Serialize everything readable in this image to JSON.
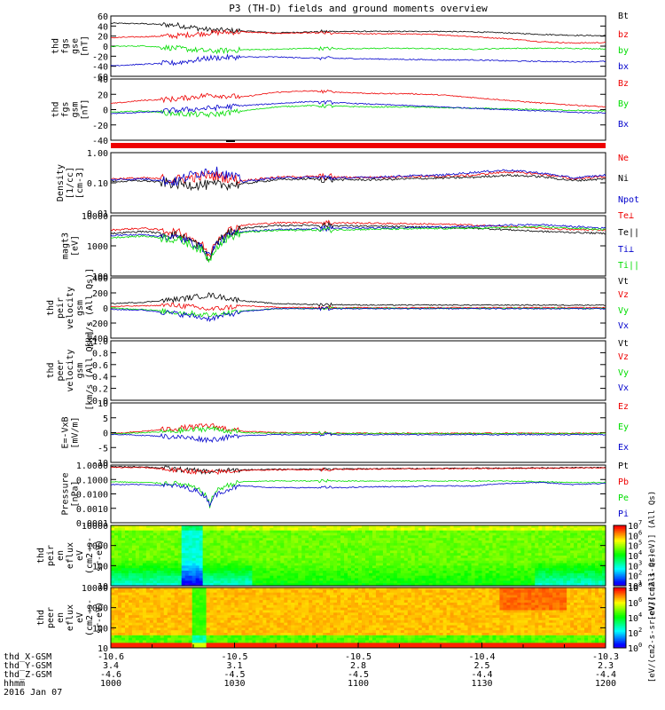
{
  "title": "P3 (TH-D) fields and ground moments overview",
  "colors": {
    "black": "#000000",
    "red": "#ee0000",
    "green": "#00dd00",
    "blue": "#0000cc"
  },
  "chart_data": [
    {
      "panel": "fgs-gse",
      "type": "line",
      "ylabel": [
        "thd",
        "fgs",
        "gse",
        "[nT]"
      ],
      "yticks": [
        "60",
        "40",
        "20",
        "0",
        "-20",
        "-40",
        "-60"
      ],
      "ylim": [
        -60,
        65
      ],
      "series": [
        {
          "name": "Bt",
          "color": "black",
          "values": [
            50,
            49,
            46,
            36,
            34,
            30,
            32,
            33,
            33,
            33,
            33,
            32,
            30,
            27,
            25,
            24
          ]
        },
        {
          "name": "bz",
          "color": "red",
          "values": [
            20,
            22,
            24,
            30,
            32,
            29,
            30,
            29,
            28,
            28,
            26,
            22,
            18,
            12,
            9,
            10
          ]
        },
        {
          "name": "by",
          "color": "green",
          "values": [
            2,
            3,
            -2,
            -8,
            -5,
            -4,
            -2,
            -3,
            -2,
            -2,
            -3,
            -4,
            -2,
            -2,
            -2,
            -3
          ]
        },
        {
          "name": "bx",
          "color": "blue",
          "values": [
            -38,
            -35,
            -32,
            -22,
            -20,
            -20,
            -22,
            -23,
            -24,
            -25,
            -26,
            -26,
            -28,
            -29,
            -30,
            -29
          ]
        }
      ]
    },
    {
      "panel": "fgs-gsm",
      "type": "line",
      "ylabel": [
        "thd",
        "fgs",
        "gsm",
        "[nT]"
      ],
      "yticks": [
        "40",
        "20",
        "0",
        "-20",
        "-40"
      ],
      "ylim": [
        -50,
        42
      ],
      "series": [
        {
          "name": "Bz",
          "color": "red",
          "values": [
            5,
            10,
            12,
            18,
            15,
            22,
            24,
            22,
            20,
            20,
            18,
            14,
            10,
            6,
            3,
            0
          ]
        },
        {
          "name": "By",
          "color": "green",
          "values": [
            -8,
            -6,
            -10,
            -12,
            -6,
            0,
            2,
            1,
            0,
            0,
            -1,
            -2,
            -3,
            -4,
            -5,
            -6
          ]
        },
        {
          "name": "Bx",
          "color": "blue",
          "values": [
            -10,
            -8,
            -5,
            -2,
            2,
            5,
            8,
            6,
            4,
            2,
            0,
            -2,
            -4,
            -6,
            -8,
            -9
          ]
        }
      ]
    },
    {
      "panel": "density",
      "type": "line",
      "ylog": true,
      "ylabel": [
        "Density",
        "[1/cc]",
        "[cm-3]"
      ],
      "yticks": [
        "1.00",
        "0.10",
        "0.01"
      ],
      "ylim": [
        0.01,
        1.2
      ],
      "series": [
        {
          "name": "Ne",
          "color": "red",
          "values": [
            0.15,
            0.16,
            0.14,
            0.2,
            0.13,
            0.17,
            0.18,
            0.17,
            0.17,
            0.18,
            0.18,
            0.2,
            0.26,
            0.22,
            0.15,
            0.18
          ]
        },
        {
          "name": "Ni",
          "color": "black",
          "values": [
            0.12,
            0.13,
            0.1,
            0.09,
            0.1,
            0.14,
            0.15,
            0.14,
            0.14,
            0.15,
            0.16,
            0.17,
            0.2,
            0.18,
            0.13,
            0.15
          ]
        },
        {
          "name": "Npot",
          "color": "blue",
          "values": [
            0.14,
            0.15,
            0.12,
            0.3,
            0.12,
            0.16,
            0.17,
            0.16,
            0.17,
            0.19,
            0.2,
            0.25,
            0.3,
            0.24,
            0.16,
            0.2
          ]
        }
      ]
    },
    {
      "panel": "magt3",
      "type": "line",
      "ylog": true,
      "ylabel": [
        "magt3",
        "[eV]"
      ],
      "yticks": [
        "10000",
        "1000",
        "100"
      ],
      "ylim": [
        30,
        10000
      ],
      "series": [
        {
          "name": "Te⊥",
          "color": "red",
          "values": [
            2500,
            3000,
            2000,
            150,
            4000,
            5000,
            5200,
            5000,
            4800,
            4600,
            4400,
            4000,
            3500,
            3000,
            2600,
            2500
          ]
        },
        {
          "name": "Te||",
          "color": "black",
          "values": [
            1800,
            2200,
            1500,
            100,
            3000,
            3800,
            4000,
            3800,
            3600,
            3400,
            3200,
            3000,
            2600,
            2200,
            2000,
            1800
          ]
        },
        {
          "name": "Ti⊥",
          "color": "blue",
          "values": [
            1500,
            1600,
            1200,
            200,
            2200,
            2600,
            2800,
            3000,
            3000,
            3200,
            3400,
            3500,
            4000,
            4200,
            3500,
            3000
          ]
        },
        {
          "name": "Ti||",
          "color": "green",
          "values": [
            1200,
            1400,
            1000,
            120,
            2000,
            2400,
            2500,
            2600,
            2700,
            2800,
            2900,
            3000,
            3200,
            3400,
            3000,
            2600
          ]
        }
      ]
    },
    {
      "panel": "peir-velocity",
      "type": "line",
      "ylabel": [
        "thd",
        "peir",
        "velocity",
        "gsm",
        "[km/s (All Qs)]"
      ],
      "yticks": [
        "400",
        "200",
        "0",
        "-200",
        "-400"
      ],
      "ylim": [
        -420,
        420
      ],
      "series": [
        {
          "name": "Vt",
          "color": "black",
          "values": [
            60,
            80,
            120,
            180,
            100,
            60,
            50,
            45,
            40,
            40,
            40,
            40,
            40,
            40,
            40,
            40
          ]
        },
        {
          "name": "Vz",
          "color": "red",
          "values": [
            20,
            30,
            40,
            -20,
            30,
            10,
            5,
            5,
            5,
            5,
            5,
            5,
            5,
            5,
            5,
            5
          ]
        },
        {
          "name": "Vy",
          "color": "green",
          "values": [
            0,
            -20,
            -60,
            -100,
            -40,
            -10,
            -5,
            -5,
            -5,
            -5,
            -5,
            -5,
            -5,
            -5,
            -5,
            -5
          ]
        },
        {
          "name": "Vx",
          "color": "blue",
          "values": [
            -20,
            -30,
            -80,
            -150,
            -50,
            -10,
            -10,
            -10,
            -10,
            -10,
            -10,
            -10,
            -10,
            -10,
            -10,
            -10
          ]
        }
      ]
    },
    {
      "panel": "peer-velocity",
      "type": "line",
      "ylabel": [
        "thd",
        "peer",
        "velocity",
        "gsm",
        "[km/s (All Qs)]"
      ],
      "yticks": [
        "1.0",
        "0.8",
        "0.6",
        "0.4",
        "0.2",
        "0.0"
      ],
      "ylim": [
        0,
        1
      ],
      "series": [
        {
          "name": "Vt",
          "color": "black",
          "values": []
        },
        {
          "name": "Vz",
          "color": "red",
          "values": []
        },
        {
          "name": "Vy",
          "color": "green",
          "values": []
        },
        {
          "name": "Vx",
          "color": "blue",
          "values": []
        }
      ]
    },
    {
      "panel": "efield",
      "type": "line",
      "ylabel": [
        "E=-VxB",
        "[mV/m]"
      ],
      "yticks": [
        "10",
        "5",
        "0",
        "-5",
        "-10"
      ],
      "ylim": [
        -10,
        11
      ],
      "series": [
        {
          "name": "Ez",
          "color": "red",
          "values": [
            0,
            1,
            2,
            3,
            1,
            0.5,
            0.5,
            0.3,
            0.3,
            0.3,
            0.3,
            0.3,
            0.3,
            0.3,
            0.3,
            0.3
          ]
        },
        {
          "name": "Ey",
          "color": "green",
          "values": [
            0,
            0.5,
            1,
            2,
            0.5,
            0.3,
            0.3,
            0.2,
            0.2,
            0.2,
            0.2,
            0.2,
            0.2,
            0.2,
            0.2,
            0.2
          ]
        },
        {
          "name": "Ex",
          "color": "blue",
          "values": [
            0,
            -0.5,
            -1,
            -2,
            -0.5,
            -0.2,
            -0.2,
            -0.2,
            -0.2,
            -0.2,
            -0.2,
            -0.2,
            -0.2,
            -0.2,
            -0.2,
            -0.2
          ]
        }
      ]
    },
    {
      "panel": "pressure",
      "type": "line",
      "ylog": true,
      "ylabel": [
        "Pressure",
        "[nPa]"
      ],
      "yticks": [
        "1.0000",
        "0.1000",
        "0.0100",
        "0.0010",
        "0.0001"
      ],
      "ylim": [
        0.0001,
        1.2
      ],
      "series": [
        {
          "name": "Pt",
          "color": "black",
          "values": [
            0.9,
            0.9,
            0.6,
            0.4,
            0.55,
            0.6,
            0.62,
            0.64,
            0.66,
            0.68,
            0.7,
            0.72,
            0.74,
            0.76,
            0.78,
            0.8
          ]
        },
        {
          "name": "Pb",
          "color": "red",
          "values": [
            0.8,
            0.8,
            0.5,
            0.35,
            0.5,
            0.55,
            0.57,
            0.6,
            0.62,
            0.64,
            0.66,
            0.68,
            0.7,
            0.72,
            0.74,
            0.76
          ]
        },
        {
          "name": "Pe",
          "color": "green",
          "values": [
            0.08,
            0.07,
            0.06,
            0.0008,
            0.08,
            0.09,
            0.09,
            0.09,
            0.09,
            0.09,
            0.09,
            0.09,
            0.09,
            0.08,
            0.07,
            0.07
          ]
        },
        {
          "name": "Pi",
          "color": "blue",
          "values": [
            0.05,
            0.05,
            0.04,
            0.002,
            0.04,
            0.03,
            0.03,
            0.03,
            0.035,
            0.035,
            0.04,
            0.04,
            0.06,
            0.07,
            0.05,
            0.06
          ]
        }
      ]
    },
    {
      "panel": "peir-spectrogram",
      "type": "heatmap",
      "ylog": true,
      "ylabel": [
        "thd",
        "peir",
        "en",
        "eflux",
        "eV",
        "(cm2-s-",
        "sr-eV)"
      ],
      "yticks": [
        "10000",
        "1000",
        "100",
        "10"
      ],
      "ylim": [
        5,
        30000
      ],
      "colorbar": {
        "label": "[eV/(cm2-s-sr-eV)] (All Qs)",
        "ticks": [
          "10^1",
          "10^2",
          "10^3",
          "10^4",
          "10^5",
          "10^6",
          "10^7"
        ]
      }
    },
    {
      "panel": "peer-spectrogram",
      "type": "heatmap",
      "ylog": true,
      "ylabel": [
        "thd",
        "peer",
        "en",
        "eflux",
        "eV",
        "(cm2-s-",
        "sr-eV)"
      ],
      "yticks": [
        "10000",
        "1000",
        "100",
        "10"
      ],
      "ylim": [
        5,
        30000
      ],
      "colorbar": {
        "label": "[eV/(cm2-s-sr-eV)] (All Qs)",
        "ticks": [
          "10^0",
          "10^2",
          "10^4",
          "10^6",
          "10^8"
        ]
      }
    }
  ],
  "x_axis": {
    "ticks": [
      "-10.6",
      "-10.5",
      "-10.5",
      "-10.4",
      "-10.3"
    ],
    "rows": [
      {
        "label": "thd_X-GSM",
        "values": [
          "-10.6",
          "-10.5",
          "-10.5",
          "-10.4",
          "-10.3"
        ]
      },
      {
        "label": "thd_Y-GSM",
        "values": [
          "3.4",
          "3.1",
          "2.8",
          "2.5",
          "2.3"
        ]
      },
      {
        "label": "thd_Z-GSM",
        "values": [
          "-4.6",
          "-4.5",
          "-4.5",
          "-4.4",
          "-4.4"
        ]
      },
      {
        "label": "hhmm",
        "values": [
          "1000",
          "1030",
          "1100",
          "1130",
          "1200"
        ]
      }
    ],
    "date": "2016 Jan 07"
  }
}
